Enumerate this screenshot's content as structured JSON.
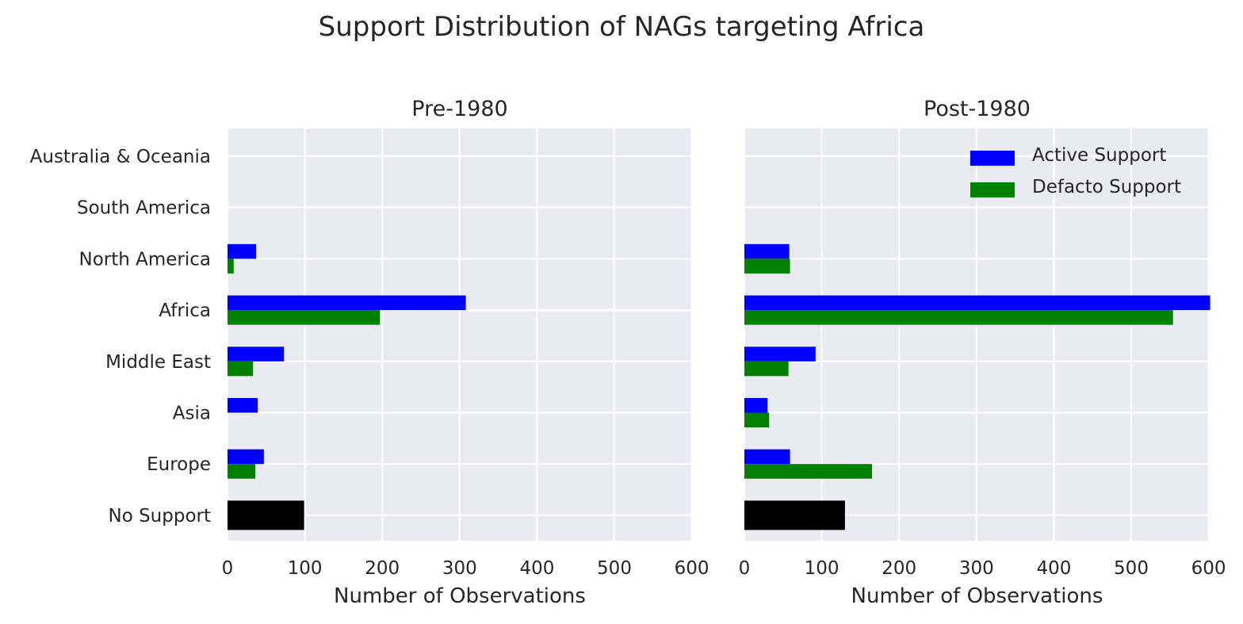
{
  "title": "Support Distribution of NAGs targeting Africa",
  "colors": {
    "active": "#0000ff",
    "defacto": "#008000",
    "none": "#000000",
    "plot_bg": "#eaeaf2",
    "grid": "#ffffff",
    "text": "#262626"
  },
  "legend": {
    "position": "top-right",
    "items": [
      {
        "label": "Active Support",
        "color": "#0000ff"
      },
      {
        "label": "Defacto Support",
        "color": "#008000"
      }
    ]
  },
  "chart_data": [
    {
      "type": "bar",
      "orientation": "horizontal",
      "title": "Pre-1980",
      "xlabel": "Number of Observations",
      "xlim": [
        0,
        600
      ],
      "xticks": [
        0,
        100,
        200,
        300,
        400,
        500,
        600
      ],
      "grid": true,
      "categories": [
        "Australia & Oceania",
        "South America",
        "North America",
        "Africa",
        "Middle East",
        "Asia",
        "Europe",
        "No Support"
      ],
      "series": [
        {
          "name": "Active Support",
          "color": "#0000ff",
          "values": [
            0,
            0,
            37,
            308,
            73,
            39,
            47,
            null
          ]
        },
        {
          "name": "Defacto Support",
          "color": "#008000",
          "values": [
            0,
            0,
            8,
            197,
            33,
            0,
            36,
            null
          ]
        },
        {
          "color": "#000000",
          "values": [
            null,
            null,
            null,
            null,
            null,
            null,
            null,
            99
          ]
        }
      ]
    },
    {
      "type": "bar",
      "orientation": "horizontal",
      "title": "Post-1980",
      "xlabel": "Number of Observations",
      "xlim": [
        0,
        600
      ],
      "xticks": [
        0,
        100,
        200,
        300,
        400,
        500,
        600
      ],
      "grid": true,
      "categories": [
        "Australia & Oceania",
        "South America",
        "North America",
        "Africa",
        "Middle East",
        "Asia",
        "Europe",
        "No Support"
      ],
      "series": [
        {
          "name": "Active Support",
          "color": "#0000ff",
          "values": [
            0,
            0,
            58,
            602,
            92,
            30,
            59,
            null
          ]
        },
        {
          "name": "Defacto Support",
          "color": "#008000",
          "values": [
            0,
            0,
            59,
            554,
            57,
            32,
            165,
            null
          ]
        },
        {
          "color": "#000000",
          "values": [
            null,
            null,
            null,
            null,
            null,
            null,
            null,
            130
          ]
        }
      ]
    }
  ]
}
